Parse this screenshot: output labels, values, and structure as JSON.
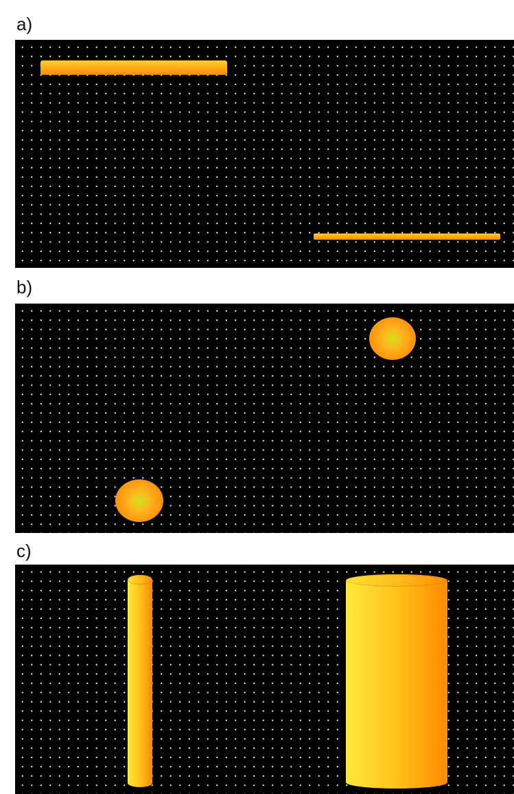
{
  "panels": [
    {
      "label": "a)",
      "objects": [
        {
          "shape": "horizontal-bar"
        },
        {
          "shape": "thin-horizontal-bar"
        }
      ]
    },
    {
      "label": "b)",
      "objects": [
        {
          "shape": "sphere"
        },
        {
          "shape": "sphere"
        }
      ]
    },
    {
      "label": "c)",
      "objects": [
        {
          "shape": "thin-cylinder"
        },
        {
          "shape": "wide-cylinder"
        }
      ]
    }
  ],
  "colors": {
    "background": "#000000",
    "dot_grid": "#e8e8e8",
    "object_light": "#ffe93a",
    "object_dark": "#ff8a00",
    "sphere_highlight": "#d4e21c"
  }
}
